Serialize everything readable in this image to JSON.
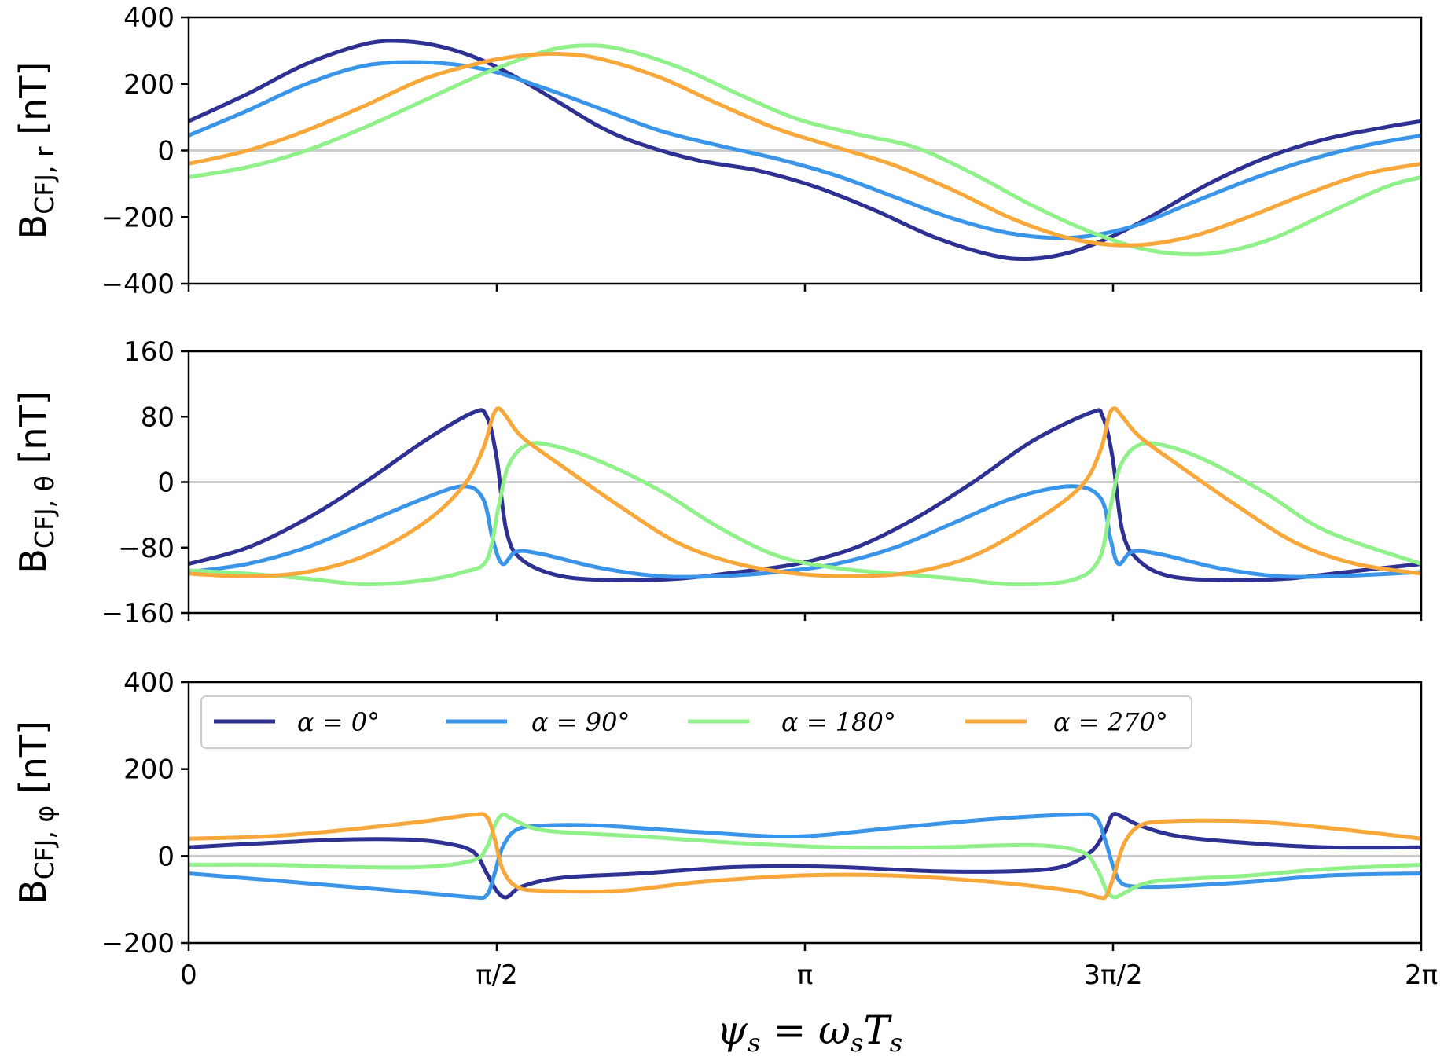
{
  "chart_data": [
    {
      "type": "line",
      "panel": "top",
      "ylabel": {
        "main": "B",
        "sub": "CFJ, r",
        "unit": "[nT]"
      },
      "ylim": [
        -400,
        400
      ],
      "yticks": [
        400,
        200,
        0,
        -200,
        -400
      ],
      "ytick_labels": [
        "400",
        "200",
        "0",
        "−200",
        "−400"
      ],
      "xlim": [
        0,
        6.2832
      ],
      "zero_line": true,
      "series": [
        {
          "name": "α = 0°",
          "color": "#2e3192",
          "x": [
            0,
            0.3,
            0.6,
            0.9,
            1.1,
            1.3,
            1.5,
            1.7,
            1.9,
            2.1,
            2.3,
            2.6,
            2.9,
            3.2,
            3.5,
            3.8,
            4.1,
            4.3,
            4.5,
            4.7,
            4.9,
            5.2,
            5.5,
            5.8,
            6.1,
            6.2832
          ],
          "y": [
            88,
            170,
            260,
            320,
            328,
            310,
            270,
            210,
            140,
            70,
            20,
            -30,
            -60,
            -110,
            -180,
            -260,
            -315,
            -325,
            -305,
            -260,
            -200,
            -100,
            -20,
            35,
            70,
            88
          ]
        },
        {
          "name": "α = 90°",
          "color": "#3a95e8",
          "x": [
            0,
            0.3,
            0.6,
            0.9,
            1.2,
            1.5,
            1.8,
            2.1,
            2.4,
            2.7,
            3.0,
            3.3,
            3.6,
            3.9,
            4.2,
            4.5,
            4.8,
            5.1,
            5.4,
            5.7,
            6.0,
            6.2832
          ],
          "y": [
            45,
            120,
            200,
            255,
            265,
            245,
            190,
            125,
            60,
            15,
            -25,
            -75,
            -140,
            -205,
            -250,
            -262,
            -230,
            -160,
            -90,
            -30,
            15,
            45
          ]
        },
        {
          "name": "α = 180°",
          "color": "#90f08a",
          "x": [
            0,
            0.3,
            0.6,
            0.9,
            1.2,
            1.5,
            1.8,
            2.0,
            2.2,
            2.5,
            2.8,
            3.1,
            3.4,
            3.7,
            4.0,
            4.3,
            4.6,
            4.9,
            5.2,
            5.5,
            5.8,
            6.1,
            6.2832
          ],
          "y": [
            -80,
            -50,
            0,
            70,
            150,
            230,
            295,
            315,
            305,
            250,
            170,
            95,
            50,
            10,
            -70,
            -165,
            -245,
            -300,
            -310,
            -270,
            -190,
            -110,
            -80
          ]
        },
        {
          "name": "α = 270°",
          "color": "#f8a83a",
          "x": [
            0,
            0.3,
            0.6,
            0.9,
            1.2,
            1.5,
            1.7,
            1.9,
            2.1,
            2.4,
            2.7,
            3.0,
            3.3,
            3.6,
            3.9,
            4.2,
            4.5,
            4.8,
            5.1,
            5.4,
            5.7,
            6.0,
            6.2832
          ],
          "y": [
            -40,
            0,
            60,
            135,
            215,
            265,
            285,
            290,
            275,
            220,
            140,
            65,
            10,
            -45,
            -120,
            -205,
            -265,
            -285,
            -260,
            -200,
            -130,
            -70,
            -40
          ]
        }
      ]
    },
    {
      "type": "line",
      "panel": "middle",
      "ylabel": {
        "main": "B",
        "sub": "CFJ, θ",
        "unit": "[nT]"
      },
      "ylim": [
        -160,
        160
      ],
      "yticks": [
        160,
        80,
        0,
        -80,
        -160
      ],
      "ytick_labels": [
        "160",
        "80",
        "0",
        "−80",
        "−160"
      ],
      "xlim": [
        0,
        6.2832
      ],
      "zero_line": true,
      "series": [
        {
          "name": "α = 0°",
          "color": "#2e3192",
          "x": [
            0,
            0.3,
            0.6,
            0.9,
            1.2,
            1.45,
            1.52,
            1.57,
            1.62,
            1.7,
            1.9,
            2.2,
            2.5,
            2.8,
            3.1,
            3.4,
            3.7,
            4.0,
            4.3,
            4.6,
            4.66,
            4.71,
            4.76,
            4.84,
            5.0,
            5.3,
            5.6,
            5.9,
            6.2832
          ],
          "y": [
            -100,
            -80,
            -45,
            0,
            50,
            85,
            80,
            30,
            -60,
            -95,
            -115,
            -120,
            -118,
            -110,
            -100,
            -80,
            -45,
            0,
            50,
            85,
            80,
            30,
            -60,
            -95,
            -115,
            -120,
            -118,
            -110,
            -100
          ]
        },
        {
          "name": "α = 90°",
          "color": "#3a95e8",
          "x": [
            0,
            0.3,
            0.6,
            0.9,
            1.2,
            1.4,
            1.5,
            1.55,
            1.6,
            1.67,
            1.8,
            2.1,
            2.4,
            2.7,
            3.0,
            3.3,
            3.6,
            3.9,
            4.2,
            4.5,
            4.65,
            4.7,
            4.74,
            4.81,
            4.95,
            5.25,
            5.55,
            5.85,
            6.2832
          ],
          "y": [
            -110,
            -100,
            -80,
            -50,
            -20,
            -5,
            -20,
            -70,
            -100,
            -85,
            -88,
            -105,
            -115,
            -115,
            -110,
            -100,
            -80,
            -50,
            -20,
            -5,
            -20,
            -70,
            -100,
            -85,
            -88,
            -105,
            -115,
            -115,
            -110
          ]
        },
        {
          "name": "α = 180°",
          "color": "#90f08a",
          "x": [
            0,
            0.3,
            0.6,
            0.9,
            1.2,
            1.4,
            1.52,
            1.58,
            1.63,
            1.72,
            1.85,
            2.1,
            2.4,
            2.7,
            3.0,
            3.3,
            3.6,
            3.9,
            4.2,
            4.5,
            4.64,
            4.7,
            4.75,
            4.84,
            4.97,
            5.2,
            5.5,
            5.8,
            6.2832
          ],
          "y": [
            -108,
            -112,
            -118,
            -125,
            -120,
            -110,
            -95,
            -30,
            20,
            45,
            45,
            25,
            -10,
            -55,
            -90,
            -105,
            -112,
            -118,
            -125,
            -120,
            -95,
            -30,
            20,
            45,
            45,
            25,
            -15,
            -60,
            -100
          ]
        },
        {
          "name": "α = 270°",
          "color": "#f8a83a",
          "x": [
            0,
            0.3,
            0.6,
            0.9,
            1.2,
            1.4,
            1.5,
            1.55,
            1.58,
            1.62,
            1.7,
            1.9,
            2.2,
            2.5,
            2.8,
            3.1,
            3.4,
            3.7,
            4.0,
            4.3,
            4.55,
            4.65,
            4.69,
            4.72,
            4.76,
            4.85,
            5.05,
            5.35,
            5.65,
            5.95,
            6.2832
          ],
          "y": [
            -112,
            -115,
            -110,
            -90,
            -50,
            -5,
            40,
            80,
            90,
            80,
            55,
            20,
            -30,
            -75,
            -100,
            -112,
            -115,
            -110,
            -90,
            -50,
            -5,
            40,
            80,
            90,
            80,
            55,
            20,
            -30,
            -75,
            -100,
            -112
          ]
        }
      ]
    },
    {
      "type": "line",
      "panel": "bottom",
      "ylabel": {
        "main": "B",
        "sub": "CFJ, φ",
        "unit": "[nT]"
      },
      "ylim": [
        -200,
        400
      ],
      "yticks": [
        400,
        200,
        0,
        -200
      ],
      "ytick_labels": [
        "400",
        "200",
        "0",
        "−200"
      ],
      "xlim": [
        0,
        6.2832
      ],
      "xticks": [
        0,
        1.5708,
        3.1416,
        4.7124,
        6.2832
      ],
      "xtick_labels": [
        "0",
        "π/2",
        "π",
        "3π/2",
        "2π"
      ],
      "xlabel": "ψs = ωsTs",
      "zero_line": true,
      "legend": "top-left",
      "series": [
        {
          "name": "α = 0°",
          "color": "#2e3192",
          "x": [
            0,
            0.4,
            0.8,
            1.1,
            1.3,
            1.45,
            1.52,
            1.57,
            1.62,
            1.7,
            1.9,
            2.3,
            2.8,
            3.3,
            3.8,
            4.2,
            4.45,
            4.6,
            4.67,
            4.71,
            4.76,
            4.85,
            5.05,
            5.4,
            5.8,
            6.2832
          ],
          "y": [
            20,
            30,
            38,
            38,
            30,
            10,
            -40,
            -80,
            -95,
            -70,
            -50,
            -40,
            -25,
            -25,
            -35,
            -35,
            -25,
            10,
            55,
            95,
            90,
            70,
            45,
            30,
            20,
            20
          ]
        },
        {
          "name": "α = 90°",
          "color": "#3a95e8",
          "x": [
            0,
            0.4,
            0.8,
            1.2,
            1.45,
            1.52,
            1.56,
            1.6,
            1.67,
            1.8,
            2.1,
            2.6,
            3.1,
            3.6,
            4.1,
            4.5,
            4.62,
            4.67,
            4.71,
            4.75,
            4.82,
            5.0,
            5.4,
            5.8,
            6.2832
          ],
          "y": [
            -40,
            -55,
            -70,
            -85,
            -95,
            -90,
            -40,
            20,
            60,
            70,
            70,
            55,
            45,
            65,
            85,
            95,
            90,
            40,
            -20,
            -60,
            -70,
            -70,
            -60,
            -45,
            -40
          ]
        },
        {
          "name": "α = 180°",
          "color": "#90f08a",
          "x": [
            0,
            0.4,
            0.8,
            1.2,
            1.45,
            1.52,
            1.56,
            1.6,
            1.65,
            1.75,
            1.9,
            2.3,
            2.8,
            3.3,
            3.8,
            4.3,
            4.55,
            4.63,
            4.68,
            4.72,
            4.77,
            4.86,
            5.0,
            5.4,
            5.8,
            6.2832
          ],
          "y": [
            -20,
            -20,
            -25,
            -25,
            -10,
            20,
            70,
            95,
            85,
            65,
            55,
            45,
            30,
            20,
            20,
            25,
            10,
            -30,
            -80,
            -95,
            -85,
            -65,
            -55,
            -45,
            -30,
            -20
          ]
        },
        {
          "name": "α = 270°",
          "color": "#f8a83a",
          "x": [
            0,
            0.4,
            0.8,
            1.2,
            1.45,
            1.52,
            1.56,
            1.6,
            1.67,
            1.8,
            2.2,
            2.6,
            3.1,
            3.6,
            4.1,
            4.5,
            4.64,
            4.68,
            4.72,
            4.77,
            4.85,
            5.0,
            5.4,
            5.8,
            6.2832
          ],
          "y": [
            40,
            45,
            60,
            80,
            95,
            90,
            40,
            -30,
            -70,
            -80,
            -80,
            -60,
            -45,
            -45,
            -60,
            -80,
            -95,
            -90,
            -40,
            30,
            70,
            80,
            80,
            65,
            40
          ]
        }
      ]
    }
  ],
  "legend": {
    "items": [
      {
        "label": "α = 0°",
        "color": "#2e3192"
      },
      {
        "label": "α = 90°",
        "color": "#3a95e8"
      },
      {
        "label": "α = 180°",
        "color": "#90f08a"
      },
      {
        "label": "α = 270°",
        "color": "#f8a83a"
      }
    ]
  },
  "xlabel": {
    "psi": "ψ",
    "psi_sub": "s",
    "eq": " = ",
    "omega": "ω",
    "omega_sub": "s",
    "t": "T",
    "t_sub": "s"
  }
}
